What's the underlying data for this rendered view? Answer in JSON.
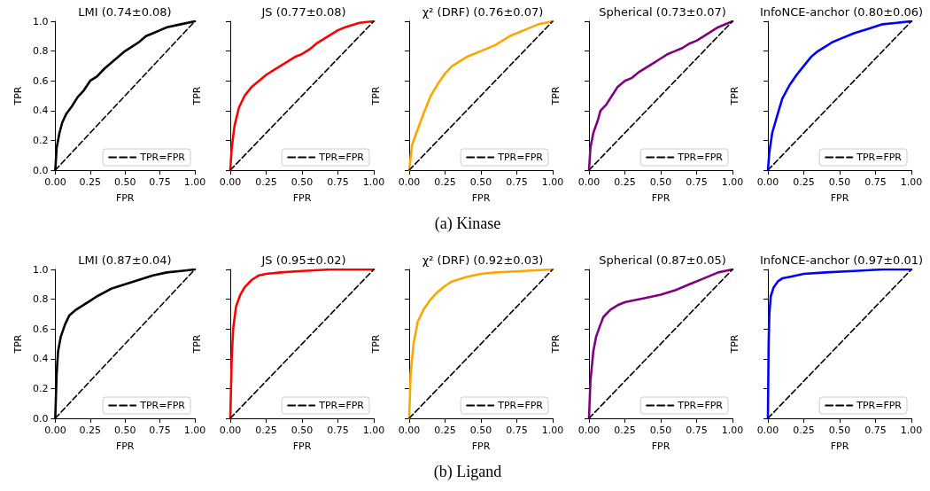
{
  "chart_data": [
    {
      "type": "line",
      "title": "LMI (0.74±0.08)",
      "xlabel": "FPR",
      "ylabel": "TPR",
      "xlim": [
        0,
        1
      ],
      "ylim": [
        0,
        1
      ],
      "xticks": [
        {
          "value": 0,
          "label": "0.00"
        },
        {
          "value": 0.25,
          "label": "0.25"
        },
        {
          "value": 0.5,
          "label": "0.50"
        },
        {
          "value": 0.75,
          "label": "0.75"
        },
        {
          "value": 1,
          "label": "1.00"
        }
      ],
      "yticks": [
        {
          "value": 0,
          "label": "0.0"
        },
        {
          "value": 0.2,
          "label": "0.2"
        },
        {
          "value": 0.4,
          "label": "0.4"
        },
        {
          "value": 0.6,
          "label": "0.6"
        },
        {
          "value": 0.8,
          "label": "0.8"
        },
        {
          "value": 1,
          "label": "1.0"
        }
      ],
      "legend": "bottom right",
      "series": [
        {
          "color": "#000000",
          "x": [
            0,
            0.01,
            0.03,
            0.05,
            0.08,
            0.12,
            0.16,
            0.2,
            0.25,
            0.3,
            0.35,
            0.4,
            0.45,
            0.5,
            0.55,
            0.6,
            0.65,
            0.7,
            0.75,
            0.8,
            0.9,
            1
          ],
          "values": [
            0,
            0.15,
            0.25,
            0.32,
            0.38,
            0.43,
            0.49,
            0.53,
            0.6,
            0.63,
            0.68,
            0.72,
            0.76,
            0.8,
            0.83,
            0.86,
            0.9,
            0.92,
            0.94,
            0.96,
            0.98,
            1
          ]
        },
        {
          "name": "TPR=FPR",
          "color": "#000000",
          "line_style": "dashed",
          "x": [
            0,
            1
          ],
          "values": [
            0,
            1
          ]
        }
      ]
    },
    {
      "type": "line",
      "title": "JS (0.77±0.08)",
      "xlabel": "FPR",
      "ylabel": "TPR",
      "xlim": [
        0,
        1
      ],
      "ylim": [
        0,
        1
      ],
      "xticks": [
        {
          "value": 0,
          "label": "0.00"
        },
        {
          "value": 0.25,
          "label": "0.25"
        },
        {
          "value": 0.5,
          "label": "0.50"
        },
        {
          "value": 0.75,
          "label": "0.75"
        },
        {
          "value": 1,
          "label": "1.00"
        }
      ],
      "yticks": [
        {
          "value": 0,
          "label": null
        },
        {
          "value": 0.2,
          "label": null
        },
        {
          "value": 0.4,
          "label": null
        },
        {
          "value": 0.6,
          "label": null
        },
        {
          "value": 0.8,
          "label": null
        },
        {
          "value": 1,
          "label": null
        }
      ],
      "tick_labels": "x",
      "legend": "bottom right",
      "series": [
        {
          "color": "#ff0000",
          "x": [
            0,
            0.01,
            0.03,
            0.06,
            0.1,
            0.15,
            0.2,
            0.25,
            0.3,
            0.35,
            0.4,
            0.45,
            0.5,
            0.55,
            0.6,
            0.65,
            0.7,
            0.75,
            0.8,
            0.9,
            1
          ],
          "values": [
            0,
            0.15,
            0.3,
            0.42,
            0.5,
            0.56,
            0.6,
            0.64,
            0.67,
            0.7,
            0.73,
            0.76,
            0.78,
            0.81,
            0.85,
            0.88,
            0.91,
            0.94,
            0.96,
            0.99,
            1
          ]
        },
        {
          "name": "TPR=FPR",
          "color": "#000000",
          "line_style": "dashed",
          "x": [
            0,
            1
          ],
          "values": [
            0,
            1
          ]
        }
      ]
    },
    {
      "type": "line",
      "title": "χ² (DRF) (0.76±0.07)",
      "xlabel": "FPR",
      "ylabel": "TPR",
      "xlim": [
        0,
        1
      ],
      "ylim": [
        0,
        1
      ],
      "xticks": [
        {
          "value": 0,
          "label": "0.00"
        },
        {
          "value": 0.25,
          "label": "0.25"
        },
        {
          "value": 0.5,
          "label": "0.50"
        },
        {
          "value": 0.75,
          "label": "0.75"
        },
        {
          "value": 1,
          "label": "1.00"
        }
      ],
      "yticks": [
        {
          "value": 0,
          "label": null
        },
        {
          "value": 0.2,
          "label": null
        },
        {
          "value": 0.4,
          "label": null
        },
        {
          "value": 0.6,
          "label": null
        },
        {
          "value": 0.8,
          "label": null
        },
        {
          "value": 1,
          "label": null
        }
      ],
      "tick_labels": "x",
      "legend": "bottom right",
      "annotations": [
        "(a) Kinase"
      ],
      "series": [
        {
          "color": "#ffa500",
          "x": [
            0,
            0.02,
            0.05,
            0.1,
            0.15,
            0.2,
            0.25,
            0.3,
            0.35,
            0.4,
            0.45,
            0.5,
            0.6,
            0.7,
            0.8,
            0.9,
            1
          ],
          "values": [
            0,
            0.17,
            0.25,
            0.38,
            0.5,
            0.58,
            0.65,
            0.7,
            0.73,
            0.76,
            0.78,
            0.8,
            0.84,
            0.9,
            0.94,
            0.98,
            1
          ]
        },
        {
          "name": "TPR=FPR",
          "color": "#000000",
          "line_style": "dashed",
          "x": [
            0,
            1
          ],
          "values": [
            0,
            1
          ]
        }
      ]
    },
    {
      "type": "line",
      "title": "Spherical (0.73±0.07)",
      "xlabel": "FPR",
      "ylabel": "TPR",
      "xlim": [
        0,
        1
      ],
      "ylim": [
        0,
        1
      ],
      "xticks": [
        {
          "value": 0,
          "label": "0.00"
        },
        {
          "value": 0.25,
          "label": "0.25"
        },
        {
          "value": 0.5,
          "label": "0.50"
        },
        {
          "value": 0.75,
          "label": "0.75"
        },
        {
          "value": 1,
          "label": "1.00"
        }
      ],
      "yticks": [
        {
          "value": 0,
          "label": null
        },
        {
          "value": 0.2,
          "label": null
        },
        {
          "value": 0.4,
          "label": null
        },
        {
          "value": 0.6,
          "label": null
        },
        {
          "value": 0.8,
          "label": null
        },
        {
          "value": 1,
          "label": null
        }
      ],
      "tick_labels": "x",
      "legend": "bottom right",
      "series": [
        {
          "color": "#800080",
          "x": [
            0,
            0.01,
            0.03,
            0.06,
            0.08,
            0.12,
            0.16,
            0.2,
            0.25,
            0.3,
            0.35,
            0.4,
            0.45,
            0.5,
            0.55,
            0.6,
            0.65,
            0.7,
            0.75,
            0.8,
            0.9,
            1
          ],
          "values": [
            0,
            0.15,
            0.25,
            0.33,
            0.4,
            0.44,
            0.5,
            0.56,
            0.6,
            0.62,
            0.66,
            0.69,
            0.72,
            0.75,
            0.78,
            0.8,
            0.82,
            0.85,
            0.87,
            0.9,
            0.96,
            1
          ]
        },
        {
          "name": "TPR=FPR",
          "color": "#000000",
          "line_style": "dashed",
          "x": [
            0,
            1
          ],
          "values": [
            0,
            1
          ]
        }
      ]
    },
    {
      "type": "line",
      "title": "InfoNCE-anchor (0.80±0.06)",
      "xlabel": "FPR",
      "ylabel": "TPR",
      "xlim": [
        0,
        1
      ],
      "ylim": [
        0,
        1
      ],
      "xticks": [
        {
          "value": 0,
          "label": "0.00"
        },
        {
          "value": 0.25,
          "label": "0.25"
        },
        {
          "value": 0.5,
          "label": "0.50"
        },
        {
          "value": 0.75,
          "label": "0.75"
        },
        {
          "value": 1,
          "label": "1.00"
        }
      ],
      "yticks": [
        {
          "value": 0,
          "label": null
        },
        {
          "value": 0.2,
          "label": null
        },
        {
          "value": 0.4,
          "label": null
        },
        {
          "value": 0.6,
          "label": null
        },
        {
          "value": 0.8,
          "label": null
        },
        {
          "value": 1,
          "label": null
        }
      ],
      "tick_labels": "x",
      "legend": "bottom right",
      "series": [
        {
          "color": "#0000ff",
          "x": [
            0,
            0.01,
            0.03,
            0.06,
            0.1,
            0.15,
            0.2,
            0.25,
            0.3,
            0.35,
            0.4,
            0.45,
            0.5,
            0.6,
            0.7,
            0.8,
            0.9,
            1
          ],
          "values": [
            0,
            0.12,
            0.25,
            0.35,
            0.48,
            0.57,
            0.64,
            0.7,
            0.76,
            0.8,
            0.83,
            0.86,
            0.88,
            0.92,
            0.95,
            0.98,
            0.99,
            1
          ]
        },
        {
          "name": "TPR=FPR",
          "color": "#000000",
          "line_style": "dashed",
          "x": [
            0,
            1
          ],
          "values": [
            0,
            1
          ]
        }
      ]
    },
    {
      "type": "line",
      "title": "LMI (0.87±0.04)",
      "xlabel": "FPR",
      "ylabel": "TPR",
      "xlim": [
        0,
        1
      ],
      "ylim": [
        0,
        1
      ],
      "xticks": [
        {
          "value": 0,
          "label": "0.00"
        },
        {
          "value": 0.25,
          "label": "0.25"
        },
        {
          "value": 0.5,
          "label": "0.50"
        },
        {
          "value": 0.75,
          "label": "0.75"
        },
        {
          "value": 1,
          "label": "1.00"
        }
      ],
      "yticks": [
        {
          "value": 0,
          "label": "0.0"
        },
        {
          "value": 0.2,
          "label": "0.2"
        },
        {
          "value": 0.4,
          "label": "0.4"
        },
        {
          "value": 0.6,
          "label": "0.6"
        },
        {
          "value": 0.8,
          "label": "0.8"
        },
        {
          "value": 1,
          "label": "1.0"
        }
      ],
      "legend": "bottom right",
      "series": [
        {
          "color": "#000000",
          "x": [
            0,
            0.01,
            0.02,
            0.04,
            0.07,
            0.1,
            0.15,
            0.2,
            0.25,
            0.3,
            0.4,
            0.5,
            0.6,
            0.7,
            0.8,
            0.9,
            1
          ],
          "values": [
            0,
            0.3,
            0.45,
            0.55,
            0.63,
            0.69,
            0.73,
            0.76,
            0.79,
            0.82,
            0.87,
            0.9,
            0.93,
            0.96,
            0.98,
            0.99,
            1
          ]
        },
        {
          "name": "TPR=FPR",
          "color": "#000000",
          "line_style": "dashed",
          "x": [
            0,
            1
          ],
          "values": [
            0,
            1
          ]
        }
      ]
    },
    {
      "type": "line",
      "title": "JS (0.95±0.02)",
      "xlabel": "FPR",
      "ylabel": "TPR",
      "xlim": [
        0,
        1
      ],
      "ylim": [
        0,
        1
      ],
      "xticks": [
        {
          "value": 0,
          "label": "0.00"
        },
        {
          "value": 0.25,
          "label": "0.25"
        },
        {
          "value": 0.5,
          "label": "0.50"
        },
        {
          "value": 0.75,
          "label": "0.75"
        },
        {
          "value": 1,
          "label": "1.00"
        }
      ],
      "yticks": [
        {
          "value": 0,
          "label": null
        },
        {
          "value": 0.2,
          "label": null
        },
        {
          "value": 0.4,
          "label": null
        },
        {
          "value": 0.6,
          "label": null
        },
        {
          "value": 0.8,
          "label": null
        },
        {
          "value": 1,
          "label": null
        }
      ],
      "tick_labels": "x",
      "legend": "bottom right",
      "series": [
        {
          "color": "#ff0000",
          "x": [
            0,
            0.01,
            0.02,
            0.04,
            0.07,
            0.1,
            0.15,
            0.2,
            0.25,
            0.35,
            0.5,
            0.7,
            1
          ],
          "values": [
            0,
            0.4,
            0.6,
            0.75,
            0.83,
            0.88,
            0.93,
            0.96,
            0.97,
            0.98,
            0.99,
            1,
            1
          ]
        },
        {
          "name": "TPR=FPR",
          "color": "#000000",
          "line_style": "dashed",
          "x": [
            0,
            1
          ],
          "values": [
            0,
            1
          ]
        }
      ]
    },
    {
      "type": "line",
      "title": "χ² (DRF) (0.92±0.03)",
      "xlabel": "FPR",
      "ylabel": "TPR",
      "xlim": [
        0,
        1
      ],
      "ylim": [
        0,
        1
      ],
      "xticks": [
        {
          "value": 0,
          "label": "0.00"
        },
        {
          "value": 0.25,
          "label": "0.25"
        },
        {
          "value": 0.5,
          "label": "0.50"
        },
        {
          "value": 0.75,
          "label": "0.75"
        },
        {
          "value": 1,
          "label": "1.00"
        }
      ],
      "yticks": [
        {
          "value": 0,
          "label": null
        },
        {
          "value": 0.2,
          "label": null
        },
        {
          "value": 0.4,
          "label": null
        },
        {
          "value": 0.6,
          "label": null
        },
        {
          "value": 0.8,
          "label": null
        },
        {
          "value": 1,
          "label": null
        }
      ],
      "tick_labels": "x",
      "legend": "bottom right",
      "annotations": [
        "(b) Ligand"
      ],
      "series": [
        {
          "color": "#ffa500",
          "x": [
            0,
            0.01,
            0.03,
            0.06,
            0.1,
            0.15,
            0.2,
            0.25,
            0.3,
            0.4,
            0.5,
            0.6,
            0.8,
            1
          ],
          "values": [
            0,
            0.3,
            0.5,
            0.65,
            0.73,
            0.8,
            0.85,
            0.89,
            0.92,
            0.95,
            0.97,
            0.98,
            0.99,
            1
          ]
        },
        {
          "name": "TPR=FPR",
          "color": "#000000",
          "line_style": "dashed",
          "x": [
            0,
            1
          ],
          "values": [
            0,
            1
          ]
        }
      ]
    },
    {
      "type": "line",
      "title": "Spherical (0.87±0.05)",
      "xlabel": "FPR",
      "ylabel": "TPR",
      "xlim": [
        0,
        1
      ],
      "ylim": [
        0,
        1
      ],
      "xticks": [
        {
          "value": 0,
          "label": "0.00"
        },
        {
          "value": 0.25,
          "label": "0.25"
        },
        {
          "value": 0.5,
          "label": "0.50"
        },
        {
          "value": 0.75,
          "label": "0.75"
        },
        {
          "value": 1,
          "label": "1.00"
        }
      ],
      "yticks": [
        {
          "value": 0,
          "label": null
        },
        {
          "value": 0.2,
          "label": null
        },
        {
          "value": 0.4,
          "label": null
        },
        {
          "value": 0.6,
          "label": null
        },
        {
          "value": 0.8,
          "label": null
        },
        {
          "value": 1,
          "label": null
        }
      ],
      "tick_labels": "x",
      "legend": "bottom right",
      "series": [
        {
          "color": "#800080",
          "x": [
            0,
            0.01,
            0.03,
            0.05,
            0.08,
            0.1,
            0.15,
            0.2,
            0.25,
            0.3,
            0.4,
            0.5,
            0.6,
            0.7,
            0.8,
            0.9,
            1
          ],
          "values": [
            0,
            0.25,
            0.45,
            0.55,
            0.63,
            0.68,
            0.73,
            0.76,
            0.78,
            0.79,
            0.81,
            0.83,
            0.86,
            0.9,
            0.94,
            0.98,
            1
          ]
        },
        {
          "name": "TPR=FPR",
          "color": "#000000",
          "line_style": "dashed",
          "x": [
            0,
            1
          ],
          "values": [
            0,
            1
          ]
        }
      ]
    },
    {
      "type": "line",
      "title": "InfoNCE-anchor (0.97±0.01)",
      "xlabel": "FPR",
      "ylabel": "TPR",
      "xlim": [
        0,
        1
      ],
      "ylim": [
        0,
        1
      ],
      "xticks": [
        {
          "value": 0,
          "label": "0.00"
        },
        {
          "value": 0.25,
          "label": "0.25"
        },
        {
          "value": 0.5,
          "label": "0.50"
        },
        {
          "value": 0.75,
          "label": "0.75"
        },
        {
          "value": 1,
          "label": "1.00"
        }
      ],
      "yticks": [
        {
          "value": 0,
          "label": null
        },
        {
          "value": 0.2,
          "label": null
        },
        {
          "value": 0.4,
          "label": null
        },
        {
          "value": 0.6,
          "label": null
        },
        {
          "value": 0.8,
          "label": null
        },
        {
          "value": 1,
          "label": null
        }
      ],
      "tick_labels": "x",
      "legend": "bottom right",
      "series": [
        {
          "color": "#0000ff",
          "x": [
            0,
            0.005,
            0.01,
            0.02,
            0.04,
            0.07,
            0.1,
            0.15,
            0.25,
            0.4,
            0.6,
            0.8,
            1
          ],
          "values": [
            0,
            0.5,
            0.7,
            0.82,
            0.88,
            0.92,
            0.94,
            0.95,
            0.97,
            0.98,
            0.99,
            1,
            1
          ]
        },
        {
          "name": "TPR=FPR",
          "color": "#000000",
          "line_style": "dashed",
          "x": [
            0,
            1
          ],
          "values": [
            0,
            1
          ]
        }
      ]
    }
  ]
}
